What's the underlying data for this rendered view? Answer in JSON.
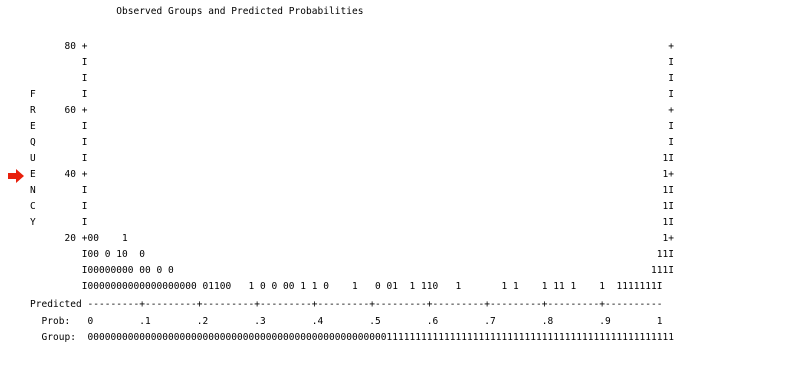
{
  "plot": {
    "lines": [
      "               Observed Groups and Predicted Probabilities",
      "",
      "      80 +                                                                                                     +",
      "         I                                                                                                     I",
      "         I                                                                                                     I",
      "F        I                                                                                                     I",
      "R     60 +                                                                                                     +",
      "E        I                                                                                                     I",
      "Q        I                                                                                                     I",
      "U        I                                                                                                    1I",
      "E     40 +                                                                                                    1+",
      "N        I                                                                                                    1I",
      "C        I                                                                                                    1I",
      "Y        I                                                                                                    1I",
      "      20 +00    1                                                                                             1+",
      "         I00 0 10  0                                                                                         11I",
      "         I00000000 00 0 0                                                                                   111I",
      "         I0000000000000000000 01100   1 0 0 00 1 1 0    1   0 01  1 110   1       1 1    1 11 1    1  1111111I",
      "Predicted ---------+---------+---------+---------+---------+---------+---------+---------+---------+----------",
      "  Prob:   0        .1        .2        .3        .4        .5        .6        .7        .8        .9        1",
      "  Group:  000000000000000000000000000000000000000000000000000011111111111111111111111111111111111111111111111111"
    ]
  },
  "marker": {
    "icon": "red-arrow-icon",
    "color": "#e8200c"
  }
}
